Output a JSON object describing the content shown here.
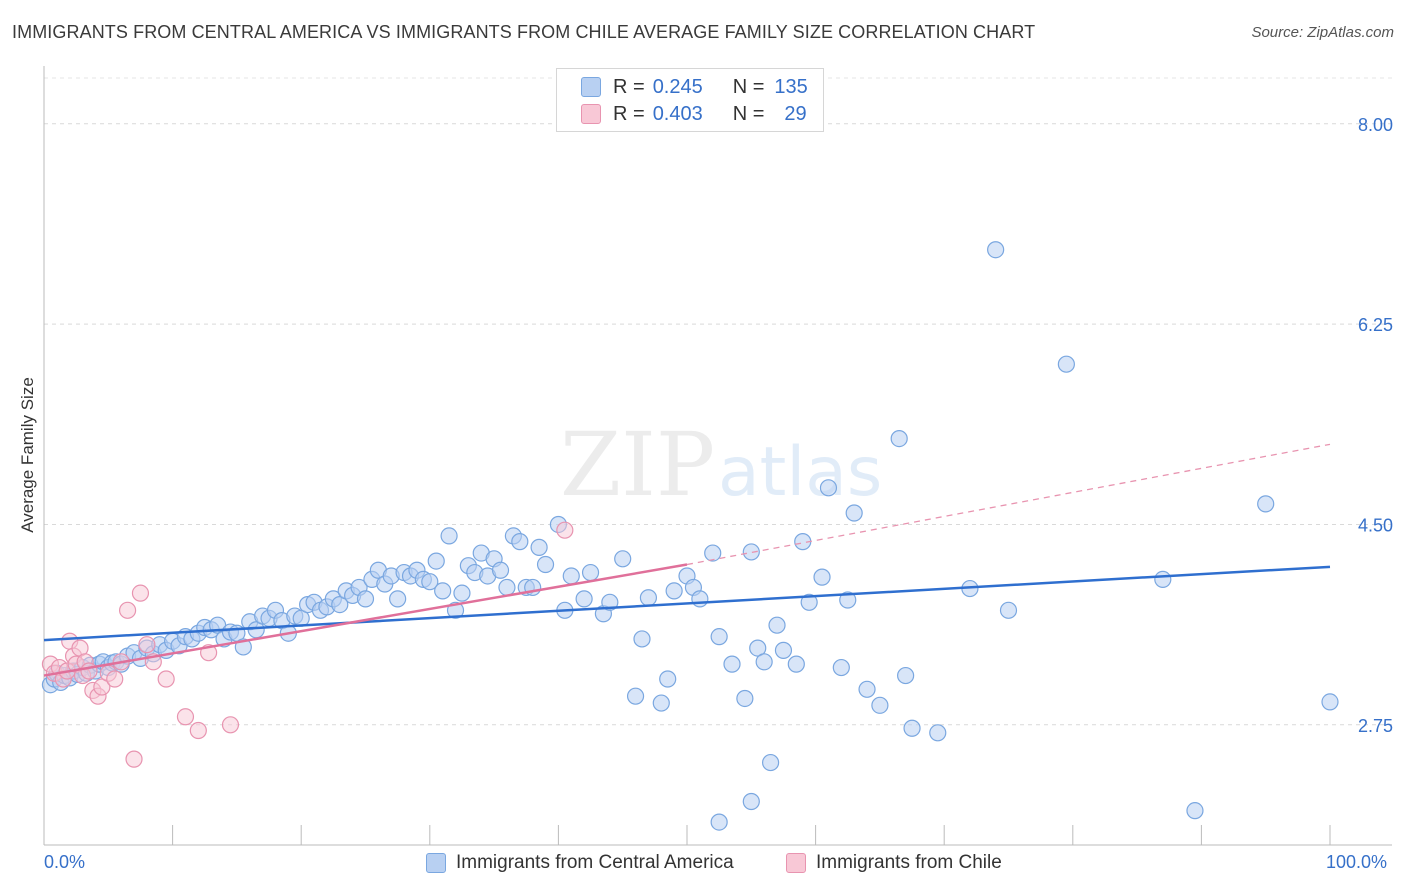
{
  "title": "IMMIGRANTS FROM CENTRAL AMERICA VS IMMIGRANTS FROM CHILE AVERAGE FAMILY SIZE CORRELATION CHART",
  "source": "Source: ZipAtlas.com",
  "watermark": {
    "zip": "ZIP",
    "atlas": "atlas"
  },
  "legend_top": {
    "r_label": "R =",
    "n_label": "N =",
    "rows": [
      {
        "r": "0.245",
        "n": "135",
        "color": "#7aa7e0"
      },
      {
        "r": "0.403",
        "n": "29",
        "color": "#e894b0"
      }
    ]
  },
  "chart_data": {
    "type": "scatter",
    "title": "IMMIGRANTS FROM CENTRAL AMERICA VS IMMIGRANTS FROM CHILE AVERAGE FAMILY SIZE CORRELATION CHART",
    "xlabel": "",
    "ylabel": "Average Family Size",
    "xlim": [
      0,
      100
    ],
    "ylim": [
      1.7,
      8.4
    ],
    "x_tick_labels": [
      "0.0%",
      "100.0%"
    ],
    "y_ticks": [
      2.75,
      4.5,
      6.25,
      8.0
    ],
    "y_tick_labels": [
      "2.75",
      "4.50",
      "6.25",
      "8.00"
    ],
    "grid": true,
    "series": [
      {
        "name": "Immigrants from Central America",
        "color": "#7aa7e0",
        "fill": "#b8d0f2",
        "trend": {
          "x": [
            0,
            100
          ],
          "y": [
            3.49,
            4.13
          ]
        },
        "points": [
          [
            0.5,
            3.1
          ],
          [
            0.8,
            3.15
          ],
          [
            1.0,
            3.2
          ],
          [
            1.3,
            3.12
          ],
          [
            1.6,
            3.18
          ],
          [
            2.0,
            3.16
          ],
          [
            2.3,
            3.22
          ],
          [
            2.6,
            3.19
          ],
          [
            3.0,
            3.25
          ],
          [
            3.3,
            3.2
          ],
          [
            3.6,
            3.27
          ],
          [
            4.0,
            3.22
          ],
          [
            4.3,
            3.28
          ],
          [
            4.6,
            3.3
          ],
          [
            5.0,
            3.25
          ],
          [
            5.3,
            3.29
          ],
          [
            5.6,
            3.3
          ],
          [
            6.0,
            3.28
          ],
          [
            6.5,
            3.35
          ],
          [
            7.0,
            3.38
          ],
          [
            7.5,
            3.33
          ],
          [
            8.0,
            3.42
          ],
          [
            8.5,
            3.37
          ],
          [
            9.0,
            3.45
          ],
          [
            9.5,
            3.4
          ],
          [
            10.0,
            3.48
          ],
          [
            10.5,
            3.44
          ],
          [
            11.0,
            3.52
          ],
          [
            11.5,
            3.5
          ],
          [
            12.0,
            3.55
          ],
          [
            12.5,
            3.6
          ],
          [
            13.0,
            3.58
          ],
          [
            13.5,
            3.62
          ],
          [
            14.0,
            3.5
          ],
          [
            14.5,
            3.56
          ],
          [
            15.0,
            3.55
          ],
          [
            15.5,
            3.43
          ],
          [
            16.0,
            3.65
          ],
          [
            16.5,
            3.58
          ],
          [
            17.0,
            3.7
          ],
          [
            17.5,
            3.68
          ],
          [
            18.0,
            3.75
          ],
          [
            18.5,
            3.66
          ],
          [
            19.0,
            3.55
          ],
          [
            19.5,
            3.7
          ],
          [
            20.0,
            3.68
          ],
          [
            20.5,
            3.8
          ],
          [
            21.0,
            3.82
          ],
          [
            21.5,
            3.75
          ],
          [
            22.0,
            3.78
          ],
          [
            22.5,
            3.85
          ],
          [
            23.0,
            3.8
          ],
          [
            23.5,
            3.92
          ],
          [
            24.0,
            3.88
          ],
          [
            24.5,
            3.95
          ],
          [
            25.0,
            3.85
          ],
          [
            25.5,
            4.02
          ],
          [
            26.0,
            4.1
          ],
          [
            26.5,
            3.98
          ],
          [
            27.0,
            4.05
          ],
          [
            27.5,
            3.85
          ],
          [
            28.0,
            4.08
          ],
          [
            28.5,
            4.05
          ],
          [
            29.0,
            4.1
          ],
          [
            29.5,
            4.02
          ],
          [
            30.0,
            4.0
          ],
          [
            30.5,
            4.18
          ],
          [
            31.0,
            3.92
          ],
          [
            31.5,
            4.4
          ],
          [
            32.0,
            3.75
          ],
          [
            32.5,
            3.9
          ],
          [
            33.0,
            4.14
          ],
          [
            33.5,
            4.08
          ],
          [
            34.0,
            4.25
          ],
          [
            34.5,
            4.05
          ],
          [
            35.0,
            4.2
          ],
          [
            35.5,
            4.1
          ],
          [
            36.0,
            3.95
          ],
          [
            36.5,
            4.4
          ],
          [
            37.0,
            4.35
          ],
          [
            37.5,
            3.95
          ],
          [
            38.0,
            3.95
          ],
          [
            38.5,
            4.3
          ],
          [
            39.0,
            4.15
          ],
          [
            40.0,
            4.5
          ],
          [
            40.5,
            3.75
          ],
          [
            41.0,
            4.05
          ],
          [
            42.0,
            3.85
          ],
          [
            42.5,
            4.08
          ],
          [
            43.5,
            3.72
          ],
          [
            44.0,
            3.82
          ],
          [
            45.0,
            4.2
          ],
          [
            46.0,
            3.0
          ],
          [
            46.5,
            3.5
          ],
          [
            47.0,
            3.86
          ],
          [
            48.0,
            2.94
          ],
          [
            48.5,
            3.15
          ],
          [
            49.0,
            3.92
          ],
          [
            50.0,
            4.05
          ],
          [
            50.5,
            3.95
          ],
          [
            51.0,
            3.85
          ],
          [
            52.0,
            4.25
          ],
          [
            52.5,
            3.52
          ],
          [
            53.5,
            3.28
          ],
          [
            54.5,
            2.98
          ],
          [
            55.0,
            4.26
          ],
          [
            55.5,
            3.42
          ],
          [
            56.0,
            3.3
          ],
          [
            56.5,
            2.42
          ],
          [
            57.0,
            3.62
          ],
          [
            57.5,
            3.4
          ],
          [
            58.5,
            3.28
          ],
          [
            59.0,
            4.35
          ],
          [
            59.5,
            3.82
          ],
          [
            60.5,
            4.04
          ],
          [
            61.0,
            4.82
          ],
          [
            62.0,
            3.25
          ],
          [
            62.5,
            3.84
          ],
          [
            63.0,
            4.6
          ],
          [
            64.0,
            3.06
          ],
          [
            65.0,
            2.92
          ],
          [
            66.5,
            5.25
          ],
          [
            67.0,
            3.18
          ],
          [
            67.5,
            2.72
          ],
          [
            69.5,
            2.68
          ],
          [
            72.0,
            3.94
          ],
          [
            74.0,
            6.9
          ],
          [
            75.0,
            3.75
          ],
          [
            79.5,
            5.9
          ],
          [
            87.0,
            4.02
          ],
          [
            89.5,
            2.0
          ],
          [
            95.0,
            4.68
          ],
          [
            100.0,
            2.95
          ],
          [
            55.0,
            2.08
          ],
          [
            52.5,
            1.9
          ]
        ]
      },
      {
        "name": "Immigrants from Chile",
        "color": "#e894b0",
        "fill": "#f8c8d6",
        "trend": {
          "x": [
            0,
            50
          ],
          "y": [
            3.18,
            4.15
          ],
          "x_dashed": [
            50,
            100
          ],
          "y_dashed": [
            4.15,
            5.2
          ]
        },
        "points": [
          [
            0.5,
            3.28
          ],
          [
            0.8,
            3.2
          ],
          [
            1.2,
            3.25
          ],
          [
            1.5,
            3.15
          ],
          [
            1.8,
            3.22
          ],
          [
            2.0,
            3.48
          ],
          [
            2.3,
            3.35
          ],
          [
            2.5,
            3.28
          ],
          [
            2.8,
            3.42
          ],
          [
            3.0,
            3.18
          ],
          [
            3.2,
            3.3
          ],
          [
            3.5,
            3.22
          ],
          [
            3.8,
            3.05
          ],
          [
            4.2,
            3.0
          ],
          [
            4.5,
            3.08
          ],
          [
            5.0,
            3.2
          ],
          [
            5.5,
            3.15
          ],
          [
            6.0,
            3.3
          ],
          [
            6.5,
            3.75
          ],
          [
            7.0,
            2.45
          ],
          [
            7.5,
            3.9
          ],
          [
            8.0,
            3.45
          ],
          [
            8.5,
            3.3
          ],
          [
            9.5,
            3.15
          ],
          [
            11.0,
            2.82
          ],
          [
            12.0,
            2.7
          ],
          [
            12.8,
            3.38
          ],
          [
            14.5,
            2.75
          ],
          [
            40.5,
            4.45
          ]
        ]
      }
    ]
  },
  "bottom_legend": [
    {
      "label": "Immigrants from Central America",
      "color": "#7aa7e0",
      "fill": "#b8d0f2"
    },
    {
      "label": "Immigrants from Chile",
      "color": "#e894b0",
      "fill": "#f8c8d6"
    }
  ]
}
